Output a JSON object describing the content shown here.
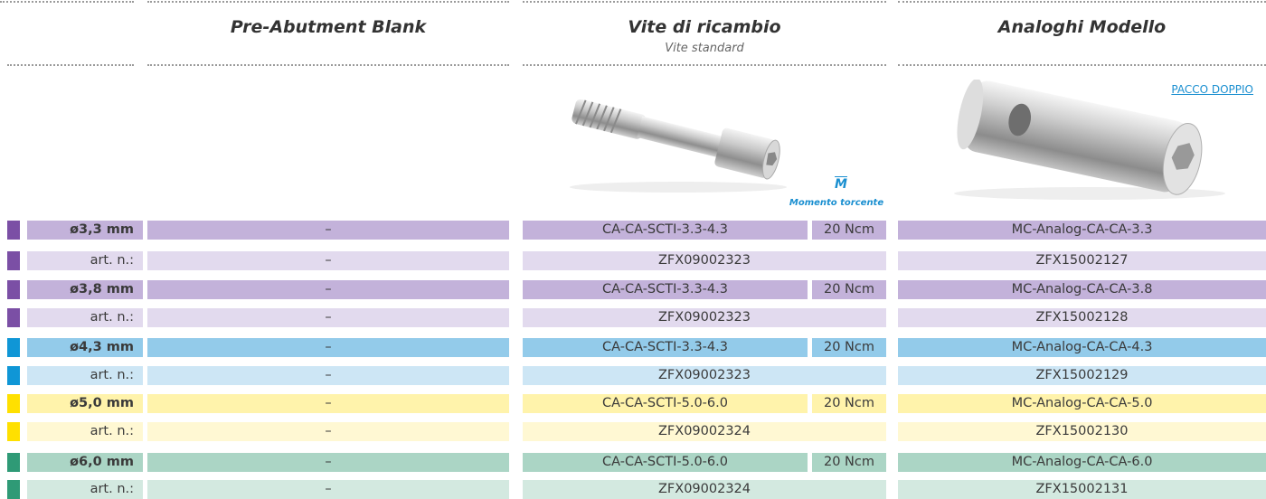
{
  "header": {
    "columns": [
      {
        "title": "Pre-Abutment Blank"
      },
      {
        "title": "Vite di ricambio",
        "subtitle": "Vite standard"
      },
      {
        "title": "Analoghi Modello",
        "link": "PACCO DOPPIO"
      }
    ],
    "torque_symbol": "M",
    "torque_label": "Momento torcente"
  },
  "table": {
    "groups": [
      {
        "diameter": "ø3,3 mm",
        "blank": "–",
        "screw": "CA-CA-SCTI-3.3-4.3",
        "torque": "20 Ncm",
        "analog": "MC-Analog-CA-CA-3.3",
        "art_label": "art. n.:",
        "blank_art": "–",
        "screw_art": "ZFX09002323",
        "analog_art": "ZFX15002127",
        "bar_color": "#7b4fa5",
        "row_color": "#c3b2da",
        "art_row_color": "#e2daee"
      },
      {
        "diameter": "ø3,8 mm",
        "blank": "–",
        "screw": "CA-CA-SCTI-3.3-4.3",
        "torque": "20 Ncm",
        "analog": "MC-Analog-CA-CA-3.8",
        "art_label": "art. n.:",
        "blank_art": "–",
        "screw_art": "ZFX09002323",
        "analog_art": "ZFX15002128",
        "bar_color": "#7b4fa5",
        "row_color": "#c3b2da",
        "art_row_color": "#e2daee"
      },
      {
        "diameter": "ø4,3 mm",
        "blank": "–",
        "screw": "CA-CA-SCTI-3.3-4.3",
        "torque": "20 Ncm",
        "analog": "MC-Analog-CA-CA-4.3",
        "art_label": "art. n.:",
        "blank_art": "–",
        "screw_art": "ZFX09002323",
        "analog_art": "ZFX15002129",
        "bar_color": "#0f96d6",
        "row_color": "#93cbea",
        "art_row_color": "#cde6f5"
      },
      {
        "diameter": "ø5,0 mm",
        "blank": "–",
        "screw": "CA-CA-SCTI-5.0-6.0",
        "torque": "20 Ncm",
        "analog": "MC-Analog-CA-CA-5.0",
        "art_label": "art. n.:",
        "blank_art": "–",
        "screw_art": "ZFX09002324",
        "analog_art": "ZFX15002130",
        "bar_color": "#ffe000",
        "row_color": "#fff3ab",
        "art_row_color": "#fff8d3"
      },
      {
        "diameter": "ø6,0 mm",
        "blank": "–",
        "screw": "CA-CA-SCTI-5.0-6.0",
        "torque": "20 Ncm",
        "analog": "MC-Analog-CA-CA-6.0",
        "art_label": "art. n.:",
        "blank_art": "–",
        "screw_art": "ZFX09002324",
        "analog_art": "ZFX15002131",
        "bar_color": "#2f9a76",
        "row_color": "#abd5c5",
        "art_row_color": "#d3e9e0"
      }
    ]
  }
}
